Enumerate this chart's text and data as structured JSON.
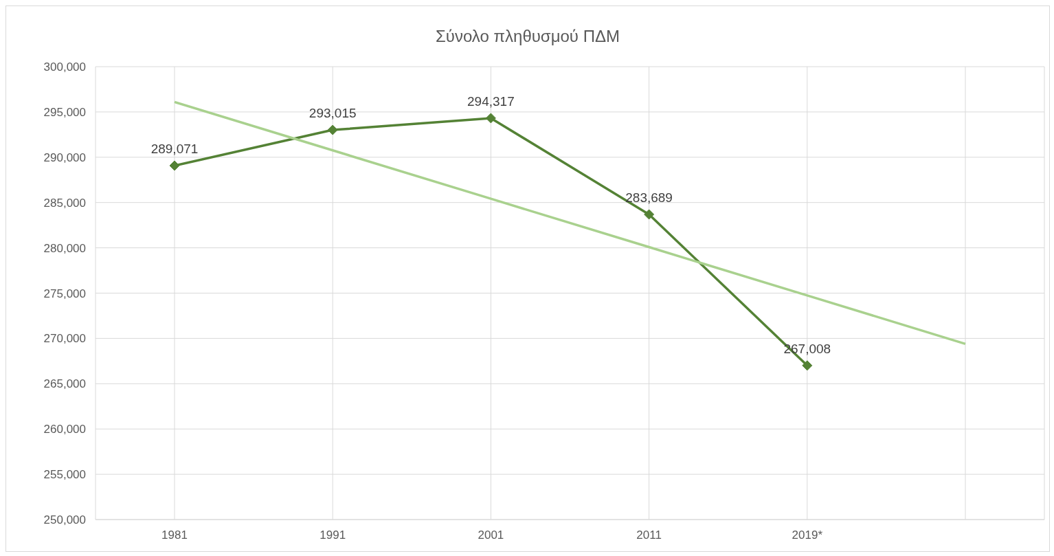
{
  "chart_data": {
    "type": "line",
    "title": "Σύνολο πληθυσμού ΠΔΜ",
    "categories": [
      "1981",
      "1991",
      "2001",
      "2011",
      "2019*",
      null
    ],
    "series": [
      {
        "color": "#548235",
        "values": [
          289071,
          293015,
          294317,
          283689,
          267008,
          null
        ],
        "marker": "diamond",
        "value_labels": [
          "289,071",
          "293,015",
          "294,317",
          "283,689",
          "267,008",
          null
        ]
      },
      {
        "color": "#a9d18e",
        "values": [
          296100,
          290760,
          285420,
          280080,
          274740,
          269400
        ],
        "marker": "none"
      }
    ],
    "ylim": [
      250000,
      300000
    ],
    "yticks": [
      {
        "value": 250000,
        "label": "250,000"
      },
      {
        "value": 255000,
        "label": "255,000"
      },
      {
        "value": 260000,
        "label": "260,000"
      },
      {
        "value": 265000,
        "label": "265,000"
      },
      {
        "value": 270000,
        "label": "270,000"
      },
      {
        "value": 275000,
        "label": "275,000"
      },
      {
        "value": 280000,
        "label": "280,000"
      },
      {
        "value": 285000,
        "label": "285,000"
      },
      {
        "value": 290000,
        "label": "290,000"
      },
      {
        "value": 295000,
        "label": "295,000"
      },
      {
        "value": 300000,
        "label": "300,000"
      }
    ],
    "grid": true
  }
}
